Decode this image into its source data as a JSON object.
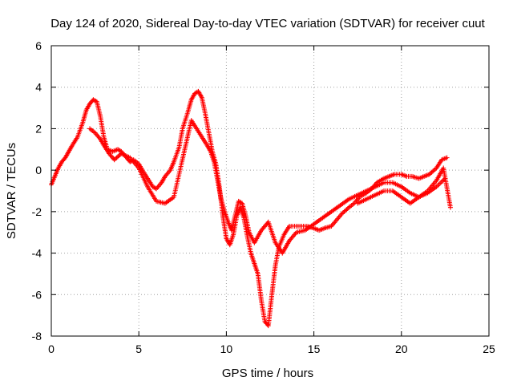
{
  "chart_data": {
    "type": "scatter",
    "title": "Day 124 of 2020, Sidereal Day-to-day VTEC variation (SDTVAR) for receiver cuut",
    "xlabel": "GPS time / hours",
    "ylabel": "SDTVAR / TECUs",
    "xlim": [
      0,
      25
    ],
    "ylim": [
      -8,
      6
    ],
    "xticks": [
      0,
      5,
      10,
      15,
      20,
      25
    ],
    "yticks": [
      -8,
      -6,
      -4,
      -2,
      0,
      2,
      4,
      6
    ],
    "xtick_labels": [
      "0",
      "5",
      "10",
      "15",
      "20",
      "25"
    ],
    "ytick_labels": [
      "-8",
      "-6",
      "-4",
      "-2",
      "0",
      "2",
      "4",
      "6"
    ],
    "grid": true,
    "legend": "none",
    "marker": "plus",
    "series": [
      {
        "color": "#ff0000",
        "x": [
          0.0,
          0.2,
          0.4,
          0.6,
          0.8,
          1.0,
          1.2,
          1.5,
          1.8,
          2.0,
          2.2,
          2.4,
          2.6,
          2.8,
          3.0,
          3.2,
          3.5,
          3.8,
          4.0,
          4.3,
          4.5,
          4.7,
          5.0,
          5.2,
          5.5,
          5.8,
          6.0,
          6.3,
          6.5,
          6.8,
          7.0,
          7.3,
          7.5,
          7.8,
          8.0,
          8.2,
          8.4,
          8.6,
          8.8,
          9.0,
          9.2,
          9.4,
          9.6,
          9.8,
          10.0,
          10.2,
          10.4,
          10.6,
          10.8,
          11.0,
          11.2,
          11.4,
          11.6,
          11.8,
          12.0,
          12.2,
          12.4,
          12.6,
          12.8,
          13.0,
          13.3,
          13.6,
          14.0,
          14.3,
          14.6,
          15.0,
          15.3,
          15.6,
          16.0,
          16.3,
          16.6,
          17.0,
          17.3,
          17.6,
          18.0,
          18.3,
          18.6,
          19.0,
          19.3,
          19.6,
          20.0,
          20.3,
          20.6,
          21.0,
          21.3,
          21.6,
          22.0,
          22.3,
          22.6
        ],
        "y": [
          -0.7,
          -0.3,
          0.1,
          0.4,
          0.6,
          0.9,
          1.2,
          1.6,
          2.3,
          2.9,
          3.2,
          3.4,
          3.3,
          2.6,
          1.6,
          1.0,
          0.9,
          1.0,
          0.9,
          0.6,
          0.4,
          0.5,
          0.3,
          0.0,
          -0.4,
          -0.8,
          -0.9,
          -0.6,
          -0.3,
          0.0,
          0.4,
          1.1,
          2.0,
          2.8,
          3.4,
          3.7,
          3.8,
          3.5,
          2.7,
          1.8,
          0.9,
          0.3,
          -0.8,
          -2.2,
          -3.3,
          -3.6,
          -3.1,
          -2.2,
          -1.8,
          -2.3,
          -3.2,
          -4.0,
          -4.5,
          -5.0,
          -6.3,
          -7.3,
          -7.5,
          -6.0,
          -4.6,
          -3.7,
          -3.1,
          -2.7,
          -2.7,
          -2.7,
          -2.7,
          -2.8,
          -2.9,
          -2.8,
          -2.7,
          -2.4,
          -2.1,
          -1.8,
          -1.6,
          -1.3,
          -1.1,
          -0.9,
          -0.6,
          -0.4,
          -0.3,
          -0.2,
          -0.2,
          -0.3,
          -0.3,
          -0.4,
          -0.3,
          -0.2,
          0.1,
          0.5,
          0.6
        ]
      },
      {
        "color": "#ff0000",
        "x": [
          2.2,
          2.5,
          2.8,
          3.0,
          3.3,
          3.6,
          4.0,
          4.5,
          5.0,
          5.5,
          6.0,
          6.5,
          7.0,
          8.0,
          8.3,
          8.6,
          8.9,
          9.1,
          9.3,
          9.5,
          9.7,
          9.9,
          10.1,
          10.3,
          10.5,
          10.7,
          10.9,
          11.1,
          11.3,
          11.6,
          12.0,
          12.4,
          12.8,
          13.2,
          13.6,
          14.0,
          14.5,
          15.0,
          15.5,
          16.0,
          16.5,
          17.0,
          17.5,
          18.0,
          18.5,
          19.0,
          19.5,
          20.0,
          20.5,
          21.0,
          21.5,
          22.0,
          22.5
        ],
        "y": [
          2.0,
          1.8,
          1.5,
          1.2,
          0.8,
          0.5,
          0.8,
          0.6,
          0.1,
          -0.8,
          -1.5,
          -1.6,
          -1.3,
          2.4,
          2.0,
          1.6,
          1.2,
          0.9,
          0.4,
          -0.5,
          -1.4,
          -2.0,
          -2.5,
          -2.9,
          -2.2,
          -1.5,
          -1.6,
          -2.2,
          -3.0,
          -3.5,
          -2.9,
          -2.5,
          -3.5,
          -4.0,
          -3.4,
          -3.0,
          -2.9,
          -2.6,
          -2.3,
          -2.0,
          -1.7,
          -1.4,
          -1.2,
          -1.0,
          -0.8,
          -0.6,
          -0.6,
          -0.8,
          -1.1,
          -1.3,
          -1.1,
          -0.8,
          -0.4
        ]
      },
      {
        "color": "#ff0000",
        "x": [
          17.5,
          18.0,
          18.5,
          19.0,
          19.5,
          20.0,
          20.5,
          21.0,
          21.5,
          22.0,
          22.4,
          22.8
        ],
        "y": [
          -1.6,
          -1.4,
          -1.2,
          -1.0,
          -1.0,
          -1.3,
          -1.6,
          -1.3,
          -1.0,
          -0.5,
          0.1,
          -1.8
        ]
      }
    ]
  }
}
